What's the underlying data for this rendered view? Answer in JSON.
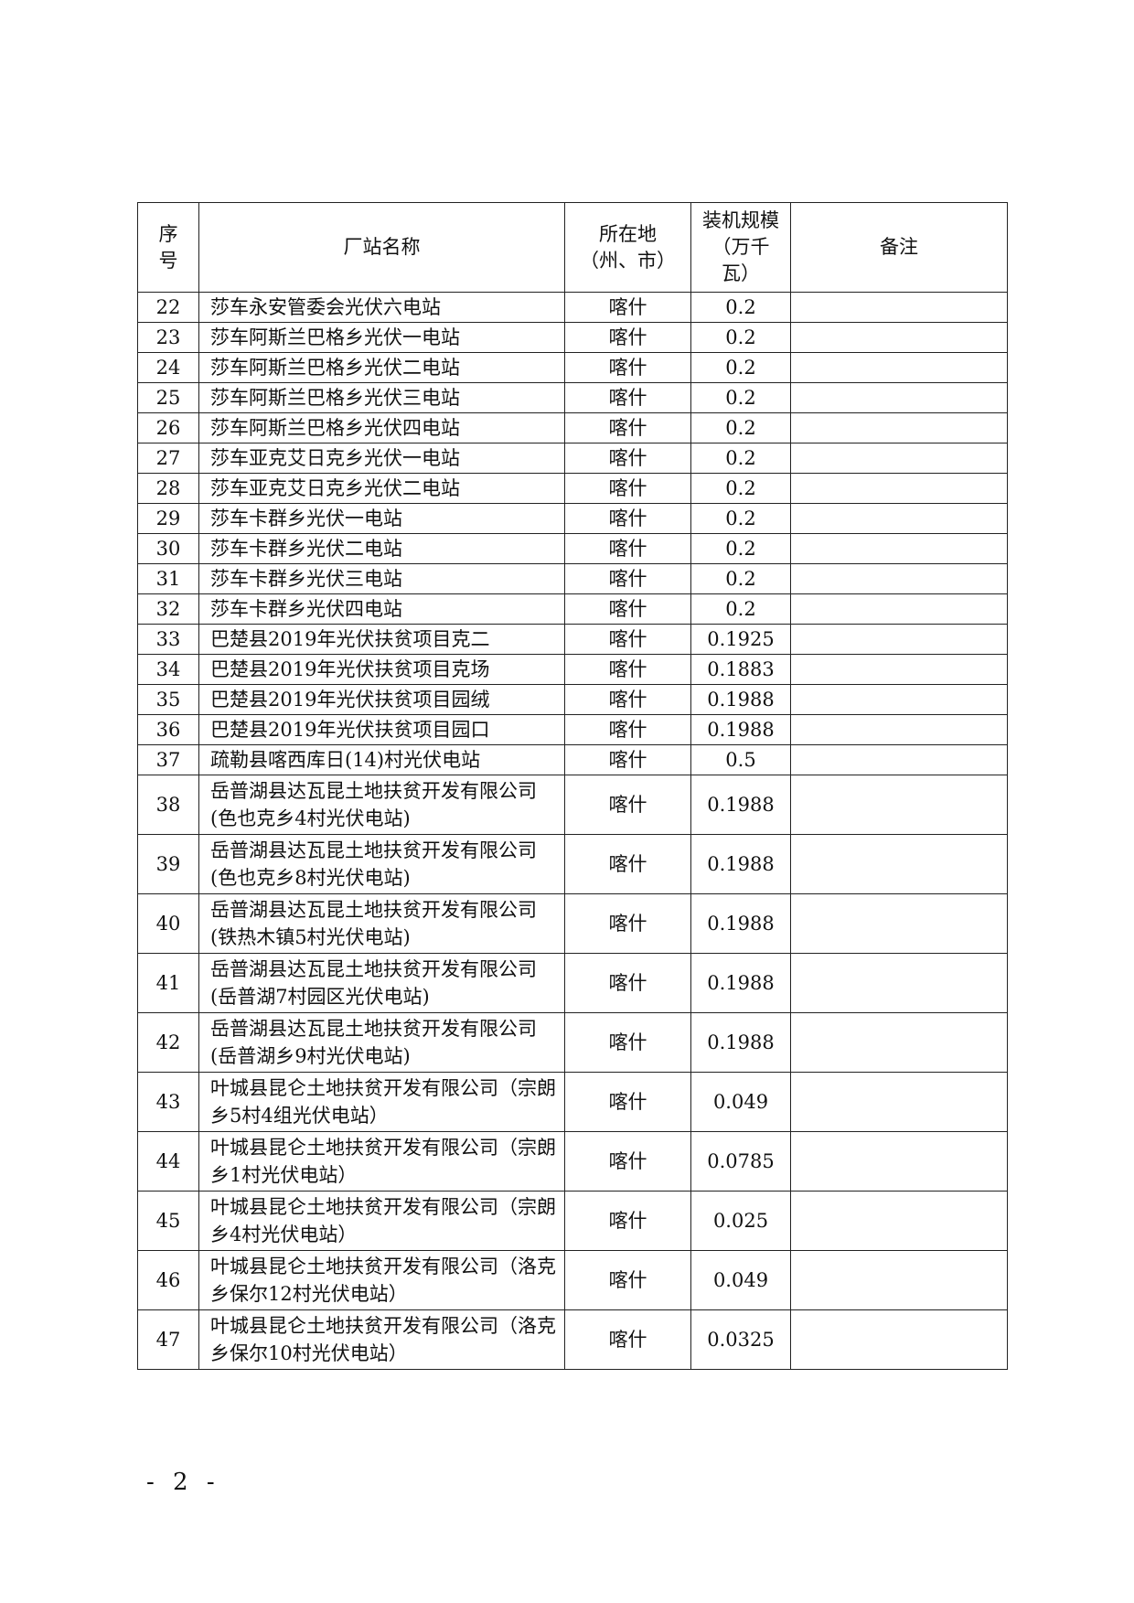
{
  "header": {
    "no": "序号",
    "name": "厂站名称",
    "location": "所在地（州、市）",
    "capacity": "装机规模（万千瓦）",
    "remark": "备注"
  },
  "rows": [
    {
      "no": "22",
      "name": "莎车永安管委会光伏六电站",
      "loc": "喀什",
      "cap": "0.2",
      "remark": ""
    },
    {
      "no": "23",
      "name": "莎车阿斯兰巴格乡光伏一电站",
      "loc": "喀什",
      "cap": "0.2",
      "remark": ""
    },
    {
      "no": "24",
      "name": "莎车阿斯兰巴格乡光伏二电站",
      "loc": "喀什",
      "cap": "0.2",
      "remark": ""
    },
    {
      "no": "25",
      "name": "莎车阿斯兰巴格乡光伏三电站",
      "loc": "喀什",
      "cap": "0.2",
      "remark": ""
    },
    {
      "no": "26",
      "name": "莎车阿斯兰巴格乡光伏四电站",
      "loc": "喀什",
      "cap": "0.2",
      "remark": ""
    },
    {
      "no": "27",
      "name": "莎车亚克艾日克乡光伏一电站",
      "loc": "喀什",
      "cap": "0.2",
      "remark": ""
    },
    {
      "no": "28",
      "name": "莎车亚克艾日克乡光伏二电站",
      "loc": "喀什",
      "cap": "0.2",
      "remark": ""
    },
    {
      "no": "29",
      "name": "莎车卡群乡光伏一电站",
      "loc": "喀什",
      "cap": "0.2",
      "remark": ""
    },
    {
      "no": "30",
      "name": "莎车卡群乡光伏二电站",
      "loc": "喀什",
      "cap": "0.2",
      "remark": ""
    },
    {
      "no": "31",
      "name": "莎车卡群乡光伏三电站",
      "loc": "喀什",
      "cap": "0.2",
      "remark": ""
    },
    {
      "no": "32",
      "name": "莎车卡群乡光伏四电站",
      "loc": "喀什",
      "cap": "0.2",
      "remark": ""
    },
    {
      "no": "33",
      "name": "巴楚县2019年光伏扶贫项目克二",
      "loc": "喀什",
      "cap": "0.1925",
      "remark": ""
    },
    {
      "no": "34",
      "name": "巴楚县2019年光伏扶贫项目克场",
      "loc": "喀什",
      "cap": "0.1883",
      "remark": ""
    },
    {
      "no": "35",
      "name": "巴楚县2019年光伏扶贫项目园绒",
      "loc": "喀什",
      "cap": "0.1988",
      "remark": ""
    },
    {
      "no": "36",
      "name": "巴楚县2019年光伏扶贫项目园口",
      "loc": "喀什",
      "cap": "0.1988",
      "remark": ""
    },
    {
      "no": "37",
      "name": "疏勒县喀西库日(14)村光伏电站",
      "loc": "喀什",
      "cap": "0.5",
      "remark": ""
    },
    {
      "no": "38",
      "name": "岳普湖县达瓦昆土地扶贫开发有限公司(色也克乡4村光伏电站)",
      "loc": "喀什",
      "cap": "0.1988",
      "remark": ""
    },
    {
      "no": "39",
      "name": "岳普湖县达瓦昆土地扶贫开发有限公司(色也克乡8村光伏电站)",
      "loc": "喀什",
      "cap": "0.1988",
      "remark": ""
    },
    {
      "no": "40",
      "name": "岳普湖县达瓦昆土地扶贫开发有限公司(铁热木镇5村光伏电站)",
      "loc": "喀什",
      "cap": "0.1988",
      "remark": ""
    },
    {
      "no": "41",
      "name": "岳普湖县达瓦昆土地扶贫开发有限公司(岳普湖7村园区光伏电站)",
      "loc": "喀什",
      "cap": "0.1988",
      "remark": ""
    },
    {
      "no": "42",
      "name": "岳普湖县达瓦昆土地扶贫开发有限公司(岳普湖乡9村光伏电站)",
      "loc": "喀什",
      "cap": "0.1988",
      "remark": ""
    },
    {
      "no": "43",
      "name": "叶城县昆仑土地扶贫开发有限公司（宗朗乡5村4组光伏电站）",
      "loc": "喀什",
      "cap": "0.049",
      "remark": ""
    },
    {
      "no": "44",
      "name": "叶城县昆仑土地扶贫开发有限公司（宗朗乡1村光伏电站）",
      "loc": "喀什",
      "cap": "0.0785",
      "remark": ""
    },
    {
      "no": "45",
      "name": "叶城县昆仑土地扶贫开发有限公司（宗朗乡4村光伏电站）",
      "loc": "喀什",
      "cap": "0.025",
      "remark": ""
    },
    {
      "no": "46",
      "name": "叶城县昆仑土地扶贫开发有限公司（洛克乡保尔12村光伏电站）",
      "loc": "喀什",
      "cap": "0.049",
      "remark": ""
    },
    {
      "no": "47",
      "name": "叶城县昆仑土地扶贫开发有限公司（洛克乡保尔10村光伏电站）",
      "loc": "喀什",
      "cap": "0.0325",
      "remark": ""
    }
  ],
  "page_number": "- 2 -"
}
